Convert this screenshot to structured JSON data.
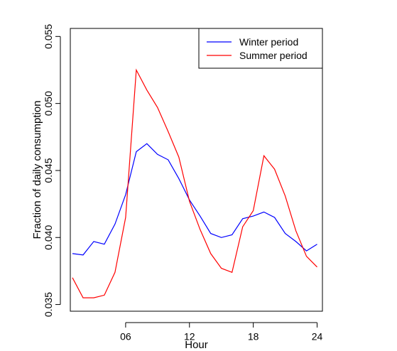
{
  "chart_data": {
    "type": "line",
    "title": "",
    "xlabel": "Hour",
    "ylabel": "Fraction of daily consumption",
    "xlim": [
      0.8,
      24.5
    ],
    "ylim": [
      0.0345,
      0.0556
    ],
    "x_ticks": [
      {
        "value": 6,
        "label": "06"
      },
      {
        "value": 12,
        "label": "12"
      },
      {
        "value": 18,
        "label": "18"
      },
      {
        "value": 24,
        "label": "24"
      }
    ],
    "y_ticks": [
      {
        "value": 0.035,
        "label": "0.035"
      },
      {
        "value": 0.04,
        "label": "0.040"
      },
      {
        "value": 0.045,
        "label": "0.045"
      },
      {
        "value": 0.05,
        "label": "0.050"
      },
      {
        "value": 0.055,
        "label": "0.055"
      }
    ],
    "legend_position": "top-right",
    "grid": false,
    "x": [
      1,
      2,
      3,
      4,
      5,
      6,
      7,
      8,
      9,
      10,
      11,
      12,
      13,
      14,
      15,
      16,
      17,
      18,
      19,
      20,
      21,
      22,
      23,
      24
    ],
    "series": [
      {
        "name": "Winter period",
        "color": "#0000ff",
        "values": [
          0.0388,
          0.0387,
          0.0397,
          0.0395,
          0.041,
          0.0432,
          0.0464,
          0.047,
          0.0462,
          0.0458,
          0.0444,
          0.0428,
          0.0416,
          0.0403,
          0.04,
          0.0402,
          0.0414,
          0.0416,
          0.0419,
          0.0415,
          0.0403,
          0.0397,
          0.039,
          0.0395
        ]
      },
      {
        "name": "Summer period",
        "color": "#ff0000",
        "values": [
          0.037,
          0.0355,
          0.0355,
          0.0357,
          0.0374,
          0.0415,
          0.0525,
          0.051,
          0.0497,
          0.0479,
          0.046,
          0.0427,
          0.0406,
          0.0388,
          0.0377,
          0.0374,
          0.0408,
          0.042,
          0.0461,
          0.0451,
          0.0431,
          0.0405,
          0.0386,
          0.0378
        ]
      }
    ]
  }
}
